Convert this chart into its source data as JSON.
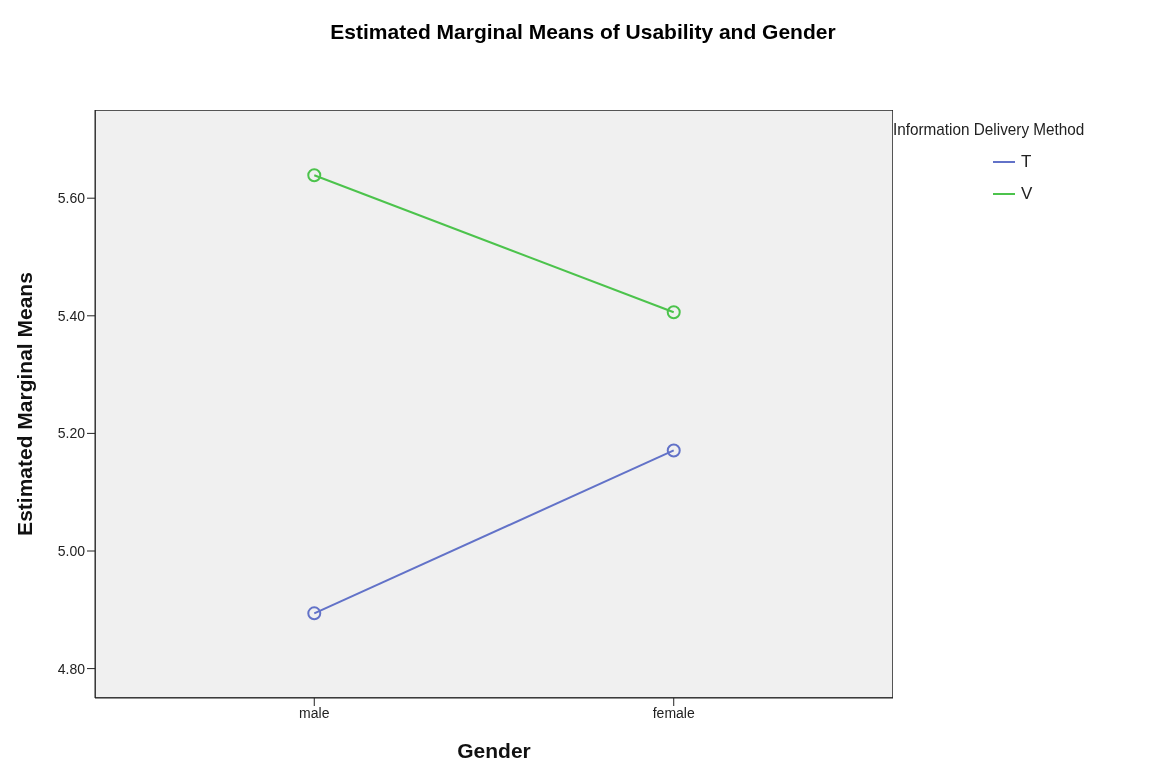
{
  "chart_data": {
    "type": "line",
    "title": "Estimated Marginal Means of Usability and Gender",
    "xlabel": "Gender",
    "ylabel": "Estimated Marginal Means",
    "legend_title": "Information Delivery Method",
    "categories": [
      "male",
      "female"
    ],
    "series": [
      {
        "name": "T",
        "color": "#6272c8",
        "values": [
          4.894,
          5.171
        ]
      },
      {
        "name": "V",
        "color": "#4cc34c",
        "values": [
          5.639,
          5.406
        ]
      }
    ],
    "ylim": [
      4.75,
      5.75
    ],
    "yticks": [
      {
        "value": 4.8,
        "label": "4.80"
      },
      {
        "value": 5.0,
        "label": "5.00"
      },
      {
        "value": 5.2,
        "label": "5.20"
      },
      {
        "value": 5.4,
        "label": "5.40"
      },
      {
        "value": 5.6,
        "label": "5.60"
      }
    ],
    "grid": false,
    "legend": "top right",
    "marker": "circle",
    "line_style": "solid"
  }
}
